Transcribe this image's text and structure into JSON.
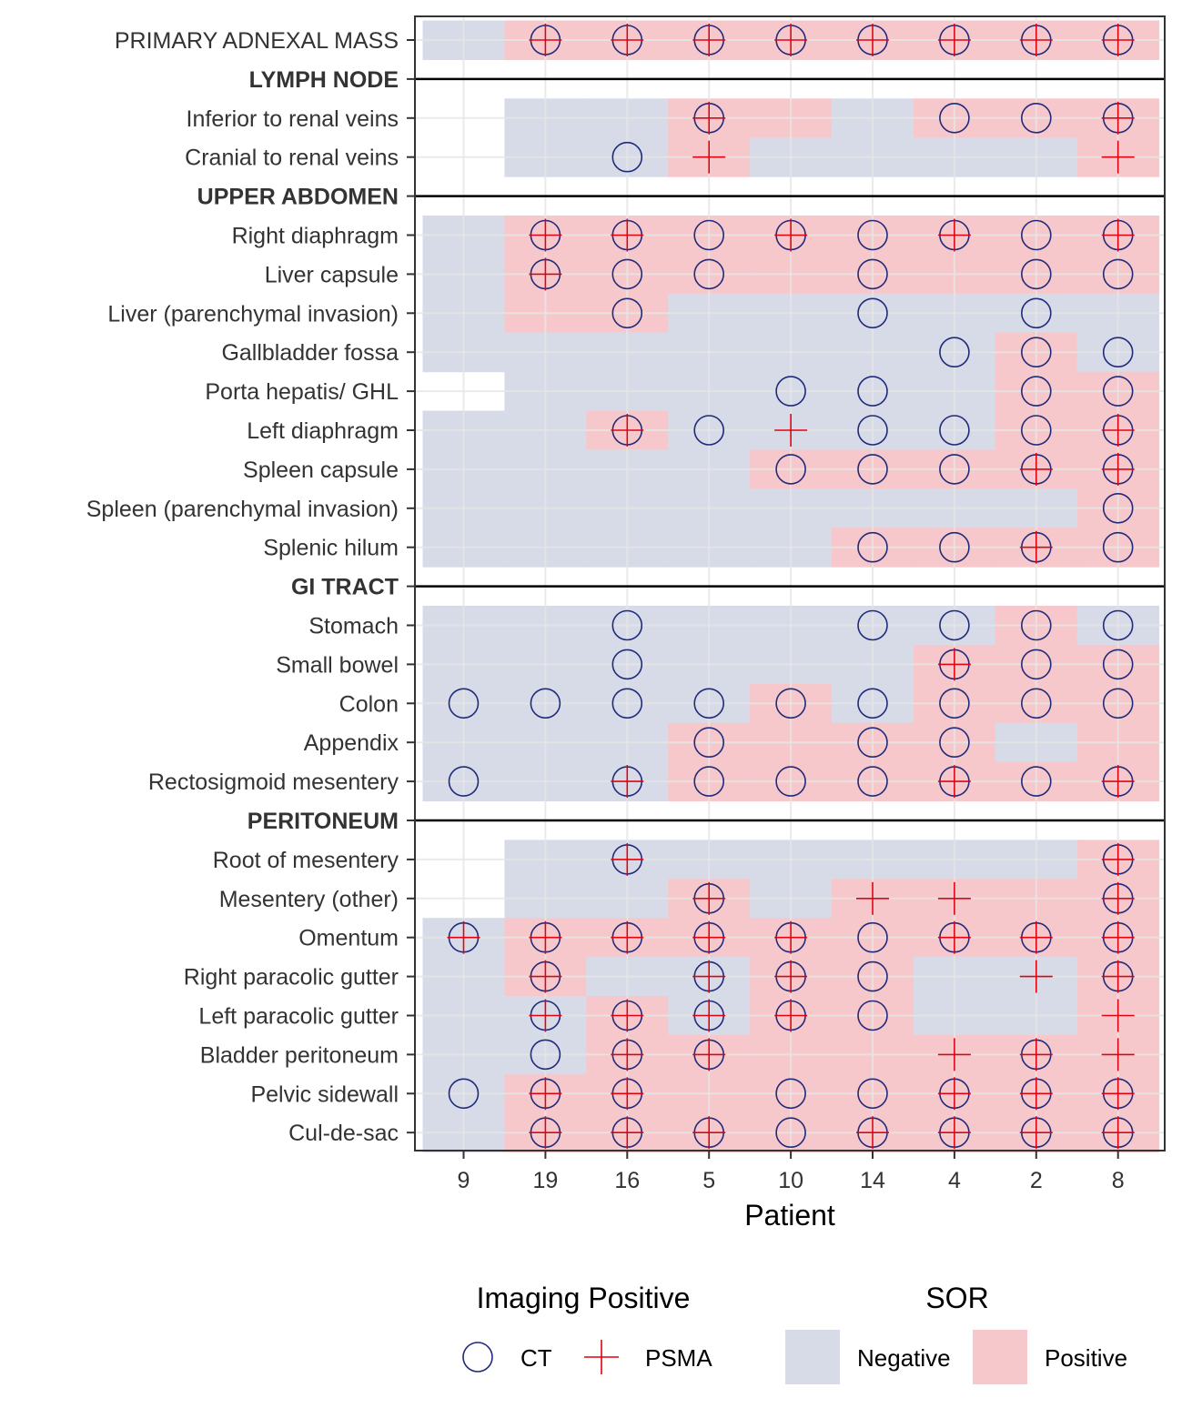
{
  "chart_data": {
    "type": "heatmap",
    "xlabel": "Patient",
    "patients": [
      "9",
      "19",
      "16",
      "5",
      "10",
      "14",
      "4",
      "2",
      "8"
    ],
    "rows": [
      {
        "label": "PRIMARY ADNEXAL MASS",
        "section": false,
        "sor": "NPPPPPPPP",
        "ct": "011111111",
        "psma": "011111111"
      },
      {
        "label": "LYMPH NODE",
        "section": true
      },
      {
        "label": "Inferior to renal veins",
        "section": false,
        "sor": "_NNPPNPPP",
        "ct": "000100111",
        "psma": "000100001"
      },
      {
        "label": "Cranial to renal veins",
        "section": false,
        "sor": "_NNPNNNNP",
        "ct": "001000000",
        "psma": "000100001"
      },
      {
        "label": "UPPER  ABDOMEN",
        "section": true
      },
      {
        "label": "Right diaphragm",
        "section": false,
        "sor": "NPPPPPPPP",
        "ct": "011111111",
        "psma": "011010101"
      },
      {
        "label": "Liver capsule",
        "section": false,
        "sor": "NPPPPPPPP",
        "ct": "011101011",
        "psma": "010000000"
      },
      {
        "label": "Liver (parenchymal invasion)",
        "section": false,
        "sor": "NPPNNNNNN",
        "ct": "001001010",
        "psma": "000000000"
      },
      {
        "label": "Gallbladder fossa",
        "section": false,
        "sor": "NNNNNNNPN",
        "ct": "000000111",
        "psma": "000000000"
      },
      {
        "label": "Porta hepatis/ GHL",
        "section": false,
        "sor": "_NNNNNNPP",
        "ct": "000011011",
        "psma": "000000000"
      },
      {
        "label": "Left diaphragm",
        "section": false,
        "sor": "NNPNNNNPP",
        "ct": "001101111",
        "psma": "001010001"
      },
      {
        "label": "Spleen capsule",
        "section": false,
        "sor": "NNNNPPPPP",
        "ct": "000011111",
        "psma": "000000011"
      },
      {
        "label": "Spleen (parenchymal invasion)",
        "section": false,
        "sor": "NNNNNNNNP",
        "ct": "000000001",
        "psma": "000000000"
      },
      {
        "label": "Splenic  hilum",
        "section": false,
        "sor": "NNNNNPPPP",
        "ct": "000001111",
        "psma": "000000010"
      },
      {
        "label": "GI TRACT",
        "section": true
      },
      {
        "label": "Stomach",
        "section": false,
        "sor": "NNNNNNNPN",
        "ct": "001001111",
        "psma": "000000000"
      },
      {
        "label": "Small bowel",
        "section": false,
        "sor": "NNNNNNPPP",
        "ct": "001000111",
        "psma": "000000100"
      },
      {
        "label": "Colon",
        "section": false,
        "sor": "NNNNPNPPP",
        "ct": "111111111",
        "psma": "000000000"
      },
      {
        "label": "Appendix",
        "section": false,
        "sor": "NNNPPPPNP",
        "ct": "000101100",
        "psma": "000000000"
      },
      {
        "label": "Rectosigmoid mesentery",
        "section": false,
        "sor": "NNNPPPPPP",
        "ct": "101111111",
        "psma": "001000101"
      },
      {
        "label": "PERITONEUM",
        "section": true
      },
      {
        "label": "Root of mesentery",
        "section": false,
        "sor": "_NNNNNNNP",
        "ct": "001000001",
        "psma": "001000001"
      },
      {
        "label": "Mesentery (other)",
        "section": false,
        "sor": "_NNPNPPPP",
        "ct": "000100001",
        "psma": "000101101"
      },
      {
        "label": "Omentum",
        "section": false,
        "sor": "NPPPPPPPP",
        "ct": "111111111",
        "psma": "111110111"
      },
      {
        "label": "Right paracolic gutter",
        "section": false,
        "sor": "NPNNPPNNP",
        "ct": "010111001",
        "psma": "010110011"
      },
      {
        "label": "Left paracolic gutter",
        "section": false,
        "sor": "NNPNPPNNP",
        "ct": "011111000",
        "psma": "011110001"
      },
      {
        "label": "Bladder peritoneum",
        "section": false,
        "sor": "NNPPPPPPP",
        "ct": "011100010",
        "psma": "001100111"
      },
      {
        "label": "Pelvic sidewall",
        "section": false,
        "sor": "NPPPPPPPP",
        "ct": "111011111",
        "psma": "011000111"
      },
      {
        "label": "Cul-de-sac",
        "section": false,
        "sor": "NPPPPPPPP",
        "ct": "011111111",
        "psma": "011101111"
      }
    ],
    "legend": {
      "imaging_title": "Imaging Positive",
      "ct_label": "CT",
      "psma_label": "PSMA",
      "sor_title": "SOR",
      "negative_label": "Negative",
      "positive_label": "Positive"
    },
    "colors": {
      "negative": "#d7dbe8",
      "positive": "#f7c8cb",
      "ct_marker": "#1f2a7a",
      "psma_marker": "#e3000f",
      "grid": "#e6e6e6",
      "section_line": "#000000"
    }
  }
}
